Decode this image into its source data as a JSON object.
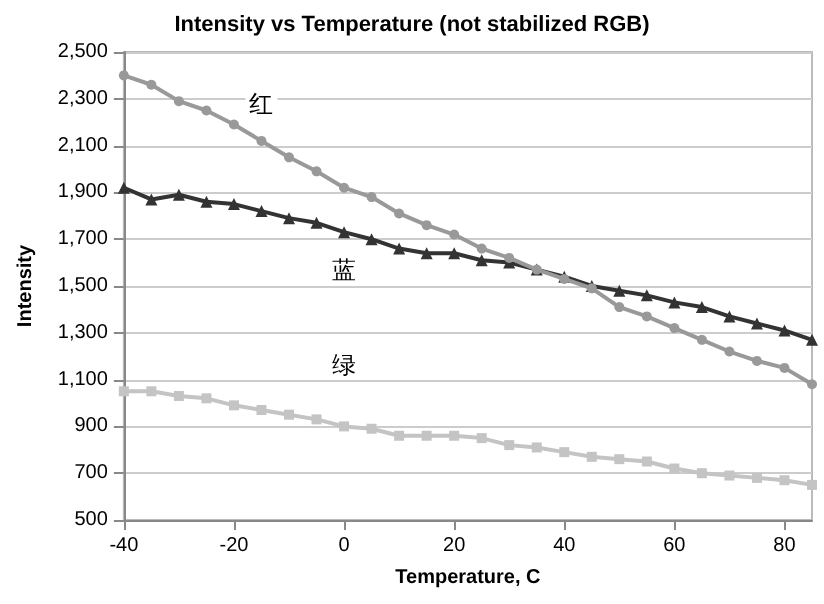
{
  "chart_data": {
    "type": "line",
    "title": "Intensity vs Temperature (not stabilized RGB)",
    "xlabel": "Temperature, C",
    "ylabel": "Intensity",
    "x": [
      -40,
      -35,
      -30,
      -25,
      -20,
      -15,
      -10,
      -5,
      0,
      5,
      10,
      15,
      20,
      25,
      30,
      35,
      40,
      45,
      50,
      55,
      60,
      65,
      70,
      75,
      80,
      85
    ],
    "series": [
      {
        "name": "红",
        "color": "#999999",
        "marker": "circle",
        "values": [
          2400,
          2360,
          2290,
          2250,
          2190,
          2120,
          2050,
          1990,
          1920,
          1880,
          1810,
          1760,
          1720,
          1660,
          1620,
          1570,
          1530,
          1490,
          1410,
          1370,
          1320,
          1270,
          1220,
          1180,
          1150,
          1080
        ]
      },
      {
        "name": "蓝",
        "color": "#333333",
        "marker": "triangle",
        "values": [
          1920,
          1870,
          1890,
          1860,
          1850,
          1820,
          1790,
          1770,
          1730,
          1700,
          1660,
          1640,
          1640,
          1610,
          1600,
          1570,
          1540,
          1500,
          1480,
          1460,
          1430,
          1410,
          1370,
          1340,
          1310,
          1270
        ]
      },
      {
        "name": "绿",
        "color": "#c4c4c4",
        "marker": "square",
        "values": [
          1050,
          1050,
          1030,
          1020,
          990,
          970,
          950,
          930,
          900,
          890,
          860,
          860,
          860,
          850,
          820,
          810,
          790,
          770,
          760,
          750,
          720,
          700,
          690,
          680,
          670,
          650
        ]
      }
    ],
    "xlim": [
      -40,
      85
    ],
    "xticks": [
      -40,
      -20,
      0,
      20,
      40,
      60,
      80
    ],
    "ylim": [
      500,
      2500
    ],
    "yticks": [
      500,
      700,
      900,
      {
        "value": 1100,
        "label": "1,100"
      },
      {
        "value": 1300,
        "label": "1,300"
      },
      {
        "value": 1500,
        "label": "1,500"
      },
      {
        "value": 1700,
        "label": "1,700"
      },
      {
        "value": 1900,
        "label": "1,900"
      },
      {
        "value": 2100,
        "label": "2,100"
      },
      {
        "value": 2300,
        "label": "2,300"
      },
      {
        "value": 2500,
        "label": "2,500"
      }
    ],
    "grid": "y",
    "legend": false
  }
}
